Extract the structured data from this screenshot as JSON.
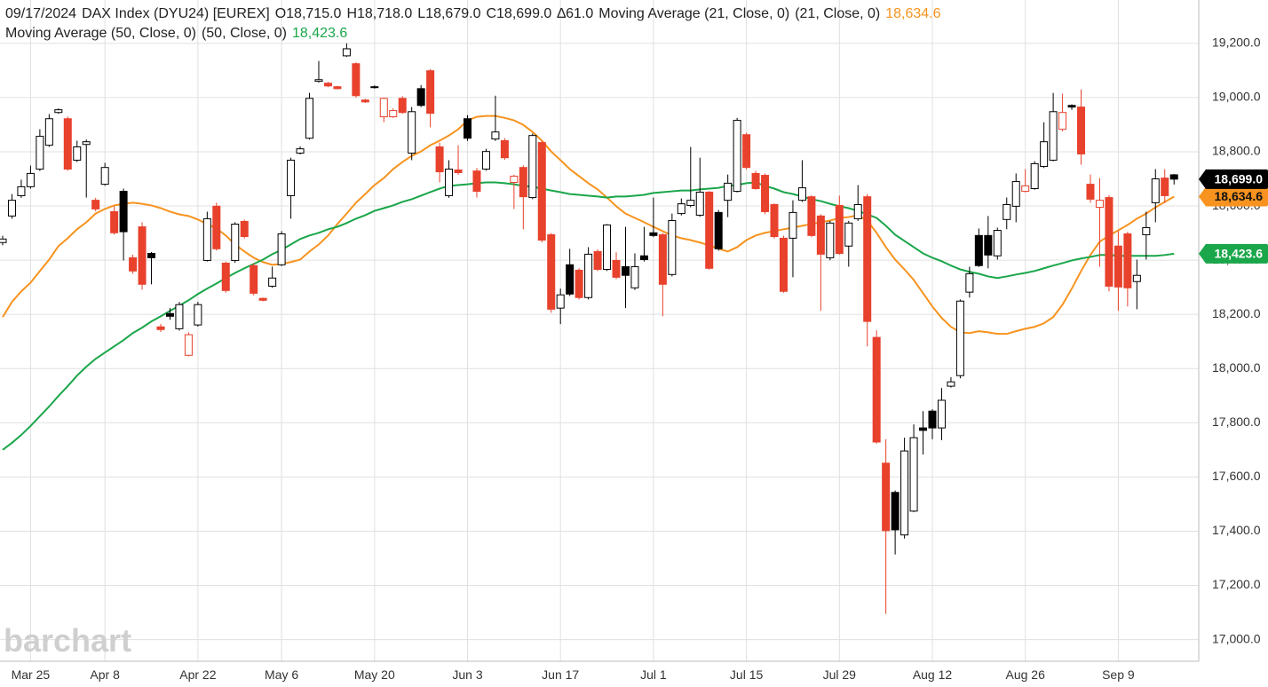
{
  "chart_data": {
    "type": "candlestick",
    "header": {
      "date": "09/17/2024",
      "symbol": "DAX Index (DYU24) [EUREX]",
      "open": "O18,715.0",
      "high": "H18,718.0",
      "low": "L18,679.0",
      "close": "C18,699.0",
      "change": "∆61.0"
    },
    "watermark": "barchart",
    "categories": [
      null,
      null,
      null,
      "Mar 25",
      null,
      null,
      null,
      null,
      null,
      null,
      null,
      "Apr 8",
      null,
      null,
      null,
      null,
      null,
      null,
      null,
      null,
      null,
      "Apr 22",
      null,
      null,
      null,
      null,
      null,
      null,
      null,
      null,
      "May 6",
      null,
      null,
      null,
      null,
      null,
      null,
      null,
      null,
      null,
      "May 20",
      null,
      null,
      null,
      null,
      null,
      null,
      null,
      null,
      null,
      "Jun 3",
      null,
      null,
      null,
      null,
      null,
      null,
      null,
      null,
      null,
      "Jun 17",
      null,
      null,
      null,
      null,
      null,
      null,
      null,
      null,
      null,
      "Jul 1",
      null,
      null,
      null,
      null,
      null,
      null,
      null,
      null,
      null,
      "Jul 15",
      null,
      null,
      null,
      null,
      null,
      null,
      null,
      null,
      null,
      "Jul 29",
      null,
      null,
      null,
      null,
      null,
      null,
      null,
      null,
      null,
      "Aug 12",
      null,
      null,
      null,
      null,
      null,
      null,
      null,
      null,
      null,
      "Aug 26",
      null,
      null,
      null,
      null,
      null,
      null,
      null,
      null,
      null,
      "Sep 9",
      null,
      null,
      null,
      null,
      null,
      null
    ],
    "open": [
      18465,
      18563,
      18638,
      18671,
      18736,
      18824,
      18945,
      18922,
      18769,
      18827,
      18621,
      18680,
      18579,
      18654,
      18409,
      18523,
      18425,
      18154,
      18203,
      18147,
      18049,
      18161,
      18399,
      18599,
      18389,
      18399,
      18543,
      18380,
      18259,
      18304,
      18383,
      18638,
      18795,
      18850,
      19060,
      19053,
      19040,
      19154,
      19125,
      18991,
      19037,
      18929,
      18929,
      18997,
      18795,
      19033,
      19099,
      18818,
      18638,
      18733,
      18922,
      18729,
      18736,
      18847,
      18841,
      18687,
      18742,
      18631,
      18834,
      18494,
      18223,
      18383,
      18363,
      18262,
      18432,
      18366,
      18399,
      18376,
      18298,
      18416,
      18501,
      18494,
      18347,
      18572,
      18602,
      18566,
      18651,
      18576,
      18621,
      18654,
      18863,
      18720,
      18713,
      18605,
      18481,
      18481,
      18621,
      18634,
      18563,
      18409,
      18602,
      18452,
      18553,
      18634,
      18115,
      17651,
      17543,
      17386,
      17474,
      17781,
      17843,
      17781,
      17935,
      17974,
      18282,
      18491,
      18491,
      18416,
      18550,
      18599,
      18654,
      18664,
      18746,
      18769,
      18883,
      18971,
      18965,
      18680,
      18595,
      18631,
      18452,
      18497,
      18321,
      18494,
      18612,
      18703,
      18715
    ],
    "high": [
      18490,
      18644,
      18697,
      18749,
      18883,
      18939,
      18960,
      18930,
      18841,
      18845,
      18630,
      18759,
      18599,
      18664,
      18420,
      18540,
      18430,
      18165,
      18223,
      18246,
      18134,
      18246,
      18579,
      18612,
      18395,
      18540,
      18550,
      18389,
      18262,
      18376,
      18507,
      18778,
      18820,
      19017,
      19135,
      19058,
      19043,
      19200,
      19130,
      18995,
      19045,
      19000,
      18960,
      19005,
      18965,
      19046,
      19105,
      18834,
      18769,
      18824,
      18935,
      18740,
      18811,
      19007,
      18850,
      18715,
      18750,
      18867,
      18840,
      18500,
      18295,
      18442,
      18370,
      18448,
      18440,
      18533,
      18429,
      18523,
      18425,
      18523,
      18631,
      18500,
      18572,
      18628,
      18818,
      18778,
      18655,
      18585,
      18716,
      18925,
      18870,
      18730,
      18720,
      18610,
      18490,
      18621,
      18769,
      18640,
      18570,
      18545,
      18638,
      18545,
      18677,
      18644,
      18141,
      17739,
      17550,
      17745,
      17794,
      17843,
      17850,
      17928,
      17968,
      18255,
      18376,
      18517,
      18563,
      18520,
      18631,
      18720,
      18736,
      18765,
      18909,
      19017,
      19014,
      18975,
      19030,
      18716,
      18703,
      18640,
      18507,
      18505,
      18402,
      18579,
      18736,
      18736,
      18718
    ],
    "low": [
      18455,
      18553,
      18630,
      18664,
      18729,
      18818,
      18940,
      18730,
      18762,
      18631,
      18580,
      18675,
      18494,
      18399,
      18350,
      18291,
      18311,
      18135,
      18180,
      18140,
      18045,
      18155,
      18395,
      18435,
      18280,
      18390,
      18480,
      18270,
      18248,
      18298,
      18378,
      18553,
      18790,
      18845,
      19055,
      19038,
      19030,
      19150,
      19000,
      18980,
      19033,
      18909,
      18925,
      18940,
      18769,
      18965,
      18890,
      18687,
      18630,
      18715,
      18840,
      18631,
      18730,
      18840,
      18770,
      18589,
      18514,
      18625,
      18465,
      18206,
      18164,
      18268,
      18255,
      18255,
      18360,
      18360,
      18330,
      18223,
      18290,
      18395,
      18485,
      18193,
      18340,
      18565,
      18595,
      18560,
      18365,
      18435,
      18559,
      18650,
      18735,
      18660,
      18570,
      18480,
      18280,
      18337,
      18615,
      18485,
      18213,
      18400,
      18420,
      18376,
      18545,
      18082,
      17723,
      17095,
      17314,
      17373,
      17470,
      17683,
      17739,
      17736,
      17930,
      17964,
      18262,
      18375,
      18370,
      18402,
      18514,
      18540,
      18650,
      18660,
      18740,
      18765,
      18875,
      18955,
      18752,
      18612,
      18376,
      18285,
      18213,
      18229,
      18219,
      18402,
      18540,
      18612,
      18679
    ],
    "close": [
      18478,
      18621,
      18671,
      18720,
      18857,
      18922,
      18955,
      18736,
      18818,
      18837,
      18589,
      18742,
      18501,
      18505,
      18360,
      18311,
      18409,
      18144,
      18193,
      18236,
      18125,
      18236,
      18553,
      18442,
      18288,
      18533,
      18487,
      18278,
      18252,
      18334,
      18497,
      18769,
      18811,
      18997,
      19066,
      19043,
      19033,
      19180,
      19007,
      18984,
      19040,
      18997,
      18952,
      18945,
      18948,
      18971,
      18942,
      18726,
      18736,
      18723,
      18850,
      18654,
      18801,
      18873,
      18778,
      18710,
      18634,
      18860,
      18474,
      18219,
      18272,
      18275,
      18262,
      18422,
      18366,
      18530,
      18337,
      18344,
      18376,
      18402,
      18491,
      18311,
      18546,
      18608,
      18621,
      18651,
      18370,
      18442,
      18684,
      18916,
      18742,
      18664,
      18579,
      18487,
      18285,
      18576,
      18667,
      18491,
      18422,
      18537,
      18425,
      18537,
      18605,
      18174,
      17729,
      17402,
      17405,
      17696,
      17745,
      17772,
      17781,
      17883,
      17951,
      18249,
      18350,
      18380,
      18419,
      18510,
      18605,
      18690,
      18674,
      18756,
      18837,
      18948,
      18945,
      18965,
      18792,
      18625,
      18621,
      18304,
      18301,
      18298,
      18344,
      18520,
      18700,
      18638,
      18699
    ],
    "last_label": "18,699.0",
    "up_color": "#000000",
    "down_color": "#e8412c",
    "series": [
      {
        "name": "Moving Average (21, Close, 0)",
        "params": "(21, Close, 0)",
        "color": "#f7931e",
        "last_label": "18,634.6",
        "values": [
          18190,
          18246,
          18285,
          18317,
          18360,
          18402,
          18452,
          18481,
          18514,
          18540,
          18572,
          18589,
          18602,
          18608,
          18612,
          18608,
          18602,
          18592,
          18579,
          18569,
          18563,
          18550,
          18533,
          18517,
          18491,
          18458,
          18432,
          18409,
          18393,
          18383,
          18386,
          18393,
          18402,
          18432,
          18458,
          18491,
          18533,
          18572,
          18612,
          18644,
          18677,
          18703,
          18736,
          18762,
          18785,
          18801,
          18824,
          18841,
          18860,
          18883,
          18916,
          18929,
          18932,
          18932,
          18925,
          18916,
          18899,
          18873,
          18841,
          18801,
          18769,
          18736,
          18710,
          18684,
          18661,
          18631,
          18599,
          18572,
          18556,
          18540,
          18523,
          18507,
          18491,
          18481,
          18474,
          18465,
          18455,
          18442,
          18432,
          18448,
          18474,
          18491,
          18501,
          18507,
          18514,
          18520,
          18527,
          18533,
          18540,
          18546,
          18556,
          18559,
          18566,
          18546,
          18501,
          18448,
          18402,
          18366,
          18327,
          18278,
          18229,
          18187,
          18154,
          18134,
          18131,
          18138,
          18134,
          18128,
          18128,
          18138,
          18147,
          18154,
          18167,
          18190,
          18236,
          18295,
          18360,
          18419,
          18468,
          18491,
          18510,
          18530,
          18553,
          18572,
          18595,
          18615,
          18634.6
        ]
      },
      {
        "name": "Moving Average (50, Close, 0)",
        "params": "(50, Close, 0)",
        "color": "#1aa64a",
        "last_label": "18,423.6",
        "values": [
          17700,
          17726,
          17755,
          17788,
          17824,
          17860,
          17899,
          17935,
          17974,
          18007,
          18036,
          18059,
          18082,
          18105,
          18131,
          18151,
          18174,
          18193,
          18213,
          18232,
          18252,
          18275,
          18295,
          18314,
          18334,
          18353,
          18370,
          18386,
          18402,
          18422,
          18438,
          18458,
          18478,
          18491,
          18501,
          18514,
          18523,
          18537,
          18553,
          18566,
          18582,
          18592,
          18602,
          18615,
          18625,
          18638,
          18651,
          18664,
          18674,
          18677,
          18680,
          18684,
          18687,
          18687,
          18684,
          18680,
          18674,
          18671,
          18664,
          18657,
          18651,
          18644,
          18641,
          18638,
          18635,
          18631,
          18635,
          18635,
          18638,
          18641,
          18648,
          18651,
          18654,
          18657,
          18657,
          18661,
          18664,
          18667,
          18674,
          18677,
          18684,
          18687,
          18674,
          18664,
          18651,
          18644,
          18635,
          18625,
          18618,
          18608,
          18599,
          18592,
          18582,
          18569,
          18556,
          18527,
          18494,
          18471,
          18448,
          18425,
          18409,
          18396,
          18380,
          18366,
          18357,
          18350,
          18340,
          18334,
          18340,
          18347,
          18353,
          18360,
          18370,
          18380,
          18389,
          18399,
          18406,
          18412,
          18419,
          18419,
          18416,
          18416,
          18416,
          18416,
          18416,
          18419,
          18423.6
        ]
      }
    ],
    "ylim": [
      16920,
      19360
    ],
    "yticks": [
      {
        "value": 17000,
        "label": "17,000.0"
      },
      {
        "value": 17200,
        "label": "17,200.0"
      },
      {
        "value": 17400,
        "label": "17,400.0"
      },
      {
        "value": 17600,
        "label": "17,600.0"
      },
      {
        "value": 17800,
        "label": "17,800.0"
      },
      {
        "value": 18000,
        "label": "18,000.0"
      },
      {
        "value": 18200,
        "label": "18,200.0"
      },
      {
        "value": 18400,
        "label": "18,400.0"
      },
      {
        "value": 18600,
        "label": "18,600.0"
      },
      {
        "value": 18800,
        "label": "18,800.0"
      },
      {
        "value": 19000,
        "label": "19,000.0"
      },
      {
        "value": 19200,
        "label": "19,200.0"
      }
    ],
    "grid": true
  }
}
